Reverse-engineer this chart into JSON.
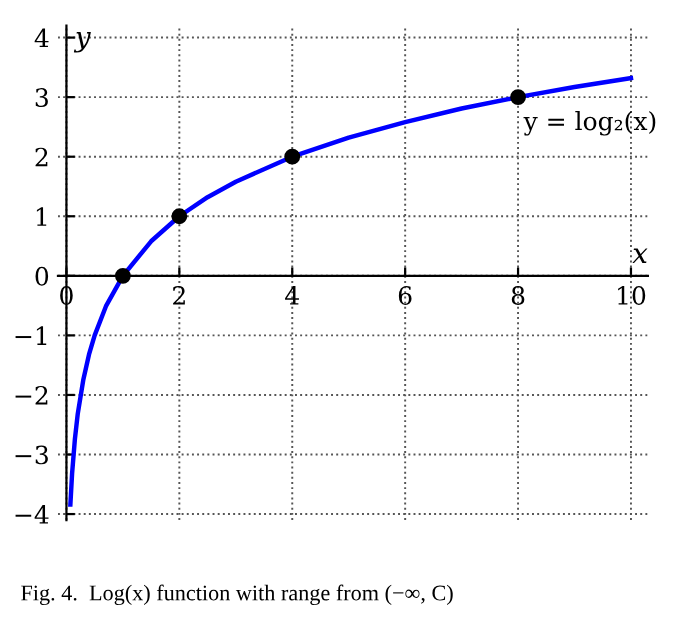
{
  "chart_data": {
    "type": "line",
    "xlabel": "x",
    "ylabel": "y",
    "xlim": [
      -0.15,
      10.3
    ],
    "ylim": [
      -4.1,
      4.2
    ],
    "xticks": [
      0,
      2,
      4,
      6,
      8,
      10
    ],
    "yticks": [
      -4,
      -3,
      -2,
      -1,
      0,
      1,
      2,
      3,
      4
    ],
    "grid": true,
    "legend": false,
    "series": [
      {
        "color": "#0000ff",
        "line_style": "solid",
        "marker": "none",
        "x": [
          0.07,
          0.1,
          0.15,
          0.2,
          0.3,
          0.4,
          0.5,
          0.7,
          1,
          1.5,
          2,
          2.5,
          3,
          4,
          5,
          6,
          7,
          8,
          9,
          10
        ],
        "values": [
          -3.84,
          -3.32,
          -2.74,
          -2.32,
          -1.74,
          -1.32,
          -1,
          -0.51,
          0,
          0.58,
          1,
          1.32,
          1.58,
          2,
          2.32,
          2.58,
          2.81,
          3,
          3.17,
          3.32
        ]
      },
      {
        "type": "scatter",
        "color": "#000000",
        "marker": "circle",
        "x": [
          1,
          2,
          4,
          8
        ],
        "values": [
          0,
          1,
          2,
          3
        ]
      }
    ],
    "annotations": [
      {
        "text": "y = log₂(x)",
        "x": 8,
        "y": 3
      },
      "Fig. 4.  Log(x) function with range from (−∞, C)"
    ]
  }
}
